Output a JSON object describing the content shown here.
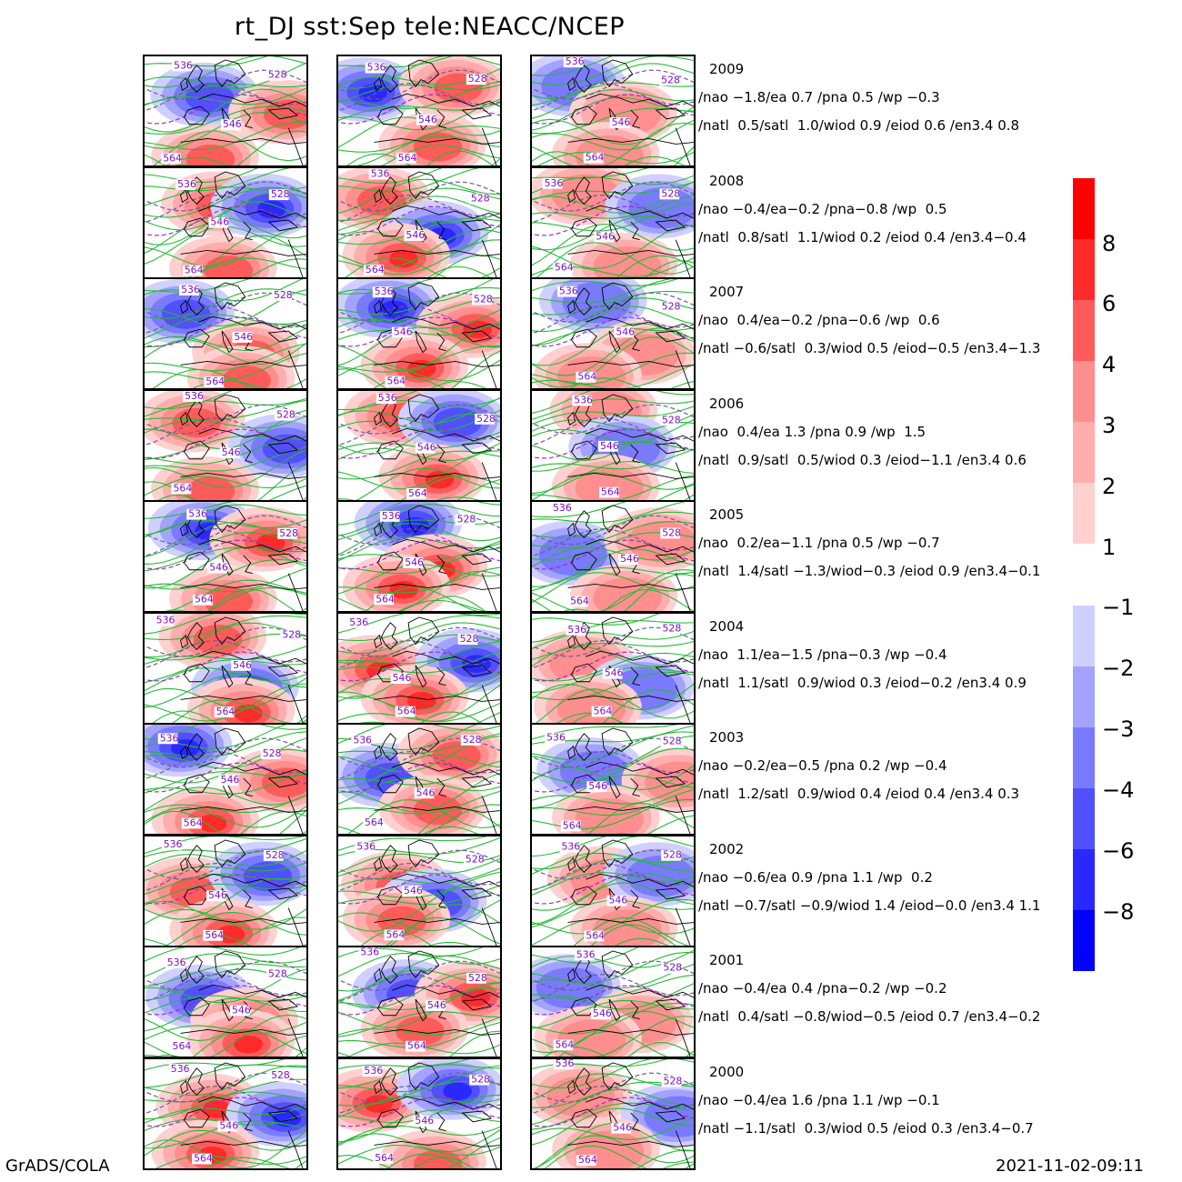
{
  "title": "rt_DJ  sst:Sep  tele:NEACC/NCEP",
  "footer": {
    "left": "GrADS/COLA",
    "right": "2021-11-02-09:11"
  },
  "colors": {
    "contour_green": "#22bb33",
    "contour_dashed": "#6a5a9a",
    "contour_purple_dashed": "#aa22cc",
    "label_text": "#7a10c0",
    "coast": "#000000"
  },
  "chart_data": {
    "type": "heatmap",
    "panel_columns": 3,
    "contour_labels": [
      "536",
      "528",
      "546",
      "564"
    ],
    "colorbar": {
      "positive": {
        "ticks": [
          "8",
          "6",
          "4",
          "3",
          "2",
          "1"
        ],
        "colors": [
          "#ff0000",
          "#ff2a2a",
          "#ff5b5b",
          "#ff8e8e",
          "#ffadad",
          "#ffd0d0"
        ]
      },
      "negative": {
        "ticks": [
          "-1",
          "-2",
          "-3",
          "-4",
          "-6",
          "-8"
        ],
        "colors": [
          "#d0d0ff",
          "#a3a3ff",
          "#7a7aff",
          "#5050ff",
          "#2828ff",
          "#0000ff"
        ]
      }
    },
    "rows": [
      {
        "year": "2009",
        "line1": "/nao −1.8/ea 0.7 /pna 0.5 /wp −0.3",
        "line2": "/natl  0.5/satl  1.0/wiod 0.9 /eiod 0.6 /en3.4 0.8",
        "nao": -1.8,
        "ea": 0.7,
        "pna": 0.5,
        "wp": -0.3,
        "natl": 0.5,
        "satl": 1.0,
        "wiod": 0.9,
        "eiod": 0.6,
        "en34": 0.8
      },
      {
        "year": "2008",
        "line1": "/nao −0.4/ea−0.2 /pna−0.8 /wp  0.5",
        "line2": "/natl  0.8/satl  1.1/wiod 0.2 /eiod 0.4 /en3.4−0.4",
        "nao": -0.4,
        "ea": -0.2,
        "pna": -0.8,
        "wp": 0.5,
        "natl": 0.8,
        "satl": 1.1,
        "wiod": 0.2,
        "eiod": 0.4,
        "en34": -0.4
      },
      {
        "year": "2007",
        "line1": "/nao  0.4/ea−0.2 /pna−0.6 /wp  0.6",
        "line2": "/natl −0.6/satl  0.3/wiod 0.5 /eiod−0.5 /en3.4−1.3",
        "nao": 0.4,
        "ea": -0.2,
        "pna": -0.6,
        "wp": 0.6,
        "natl": -0.6,
        "satl": 0.3,
        "wiod": 0.5,
        "eiod": -0.5,
        "en34": -1.3
      },
      {
        "year": "2006",
        "line1": "/nao  0.4/ea 1.3 /pna 0.9 /wp  1.5",
        "line2": "/natl  0.9/satl  0.5/wiod 0.3 /eiod−1.1 /en3.4 0.6",
        "nao": 0.4,
        "ea": 1.3,
        "pna": 0.9,
        "wp": 1.5,
        "natl": 0.9,
        "satl": 0.5,
        "wiod": 0.3,
        "eiod": -1.1,
        "en34": 0.6
      },
      {
        "year": "2005",
        "line1": "/nao  0.2/ea−1.1 /pna 0.5 /wp −0.7",
        "line2": "/natl  1.4/satl −1.3/wiod−0.3 /eiod 0.9 /en3.4−0.1",
        "nao": 0.2,
        "ea": -1.1,
        "pna": 0.5,
        "wp": -0.7,
        "natl": 1.4,
        "satl": -1.3,
        "wiod": -0.3,
        "eiod": 0.9,
        "en34": -0.1
      },
      {
        "year": "2004",
        "line1": "/nao  1.1/ea−1.5 /pna−0.3 /wp −0.4",
        "line2": "/natl  1.1/satl  0.9/wiod 0.3 /eiod−0.2 /en3.4 0.9",
        "nao": 1.1,
        "ea": -1.5,
        "pna": -0.3,
        "wp": -0.4,
        "natl": 1.1,
        "satl": 0.9,
        "wiod": 0.3,
        "eiod": -0.2,
        "en34": 0.9
      },
      {
        "year": "2003",
        "line1": "/nao −0.2/ea−0.5 /pna 0.2 /wp −0.4",
        "line2": "/natl  1.2/satl  0.9/wiod 0.4 /eiod 0.4 /en3.4 0.3",
        "nao": -0.2,
        "ea": -0.5,
        "pna": 0.2,
        "wp": -0.4,
        "natl": 1.2,
        "satl": 0.9,
        "wiod": 0.4,
        "eiod": 0.4,
        "en34": 0.3
      },
      {
        "year": "2002",
        "line1": "/nao −0.6/ea 0.9 /pna 1.1 /wp  0.2",
        "line2": "/natl −0.7/satl −0.9/wiod 1.4 /eiod−0.0 /en3.4 1.1",
        "nao": -0.6,
        "ea": 0.9,
        "pna": 1.1,
        "wp": 0.2,
        "natl": -0.7,
        "satl": -0.9,
        "wiod": 1.4,
        "eiod": -0.0,
        "en34": 1.1
      },
      {
        "year": "2001",
        "line1": "/nao −0.4/ea 0.4 /pna−0.2 /wp −0.2",
        "line2": "/natl  0.4/satl −0.8/wiod−0.5 /eiod 0.7 /en3.4−0.2",
        "nao": -0.4,
        "ea": 0.4,
        "pna": -0.2,
        "wp": -0.2,
        "natl": 0.4,
        "satl": -0.8,
        "wiod": -0.5,
        "eiod": 0.7,
        "en34": -0.2
      },
      {
        "year": "2000",
        "line1": "/nao −0.4/ea 1.6 /pna 1.1 /wp −0.1",
        "line2": "/natl −1.1/satl  0.3/wiod 0.5 /eiod 0.3 /en3.4−0.7",
        "nao": -0.4,
        "ea": 1.6,
        "pna": 1.1,
        "wp": -0.1,
        "natl": -1.1,
        "satl": 0.3,
        "wiod": 0.5,
        "eiod": 0.3,
        "en34": -0.7
      }
    ]
  }
}
